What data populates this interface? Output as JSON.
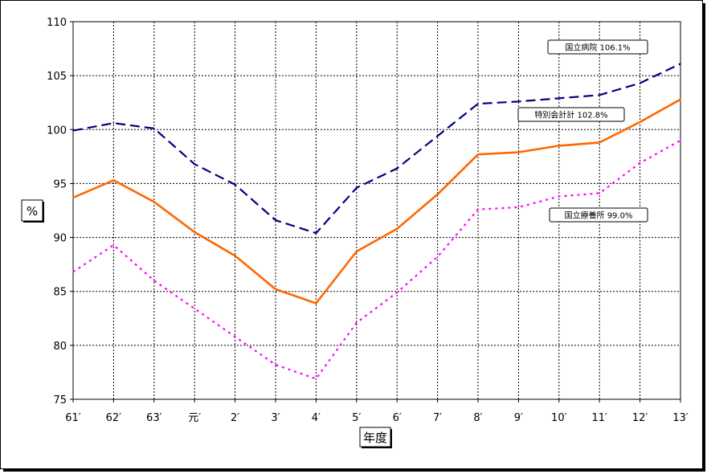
{
  "chart_data": {
    "type": "line",
    "title": "",
    "xlabel": "年度",
    "ylabel": "%",
    "ylim": [
      75,
      110
    ],
    "yticks": [
      "75",
      "80",
      "85",
      "90",
      "95",
      "100",
      "105",
      "110"
    ],
    "categories": [
      "61′",
      "62′",
      "63′",
      "元′",
      "2′",
      "3′",
      "4′",
      "5′",
      "6′",
      "7′",
      "8′",
      "9′",
      "10′",
      "11′",
      "12′",
      "13′"
    ],
    "grid": true,
    "series": [
      {
        "name": "国立病院 106.1%",
        "color": "#000080",
        "style": "dashed",
        "values": [
          99.9,
          100.6,
          100.1,
          96.8,
          94.9,
          91.6,
          90.4,
          94.6,
          96.4,
          99.4,
          102.4,
          102.6,
          102.9,
          103.2,
          104.3,
          106.1
        ]
      },
      {
        "name": "特別会計計 102.8%",
        "color": "#ff6600",
        "style": "solid",
        "values": [
          93.7,
          95.3,
          93.3,
          90.5,
          88.3,
          85.2,
          83.9,
          88.7,
          90.8,
          94.0,
          97.7,
          97.9,
          98.5,
          98.8,
          100.7,
          102.8
        ]
      },
      {
        "name": "国立療養所 99.0%",
        "color": "#ff00ff",
        "style": "dotted",
        "values": [
          86.8,
          89.3,
          86.0,
          83.4,
          80.8,
          78.2,
          76.9,
          82.1,
          84.9,
          88.2,
          92.6,
          92.8,
          93.8,
          94.1,
          96.9,
          99.0
        ]
      }
    ]
  }
}
